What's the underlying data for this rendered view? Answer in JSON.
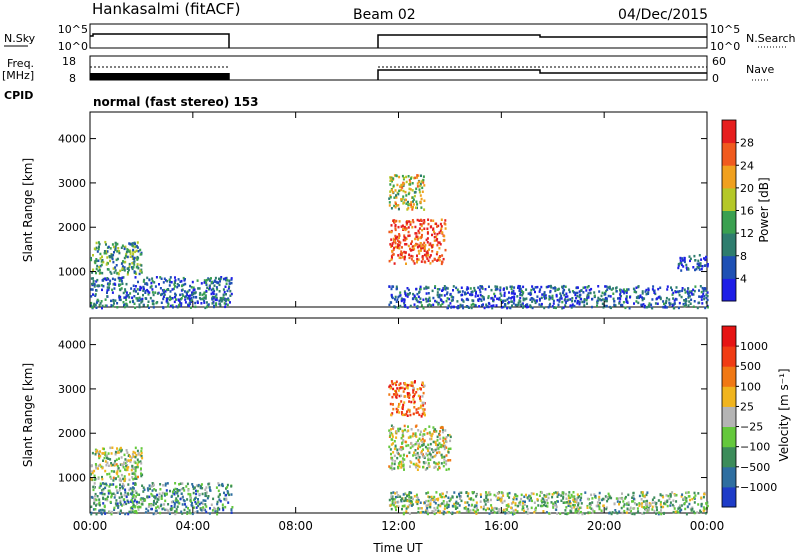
{
  "header": {
    "station": "Hankasalmi (fitACF)",
    "beam": "Beam 02",
    "date": "04/Dec/2015"
  },
  "status_panels": {
    "nsky_label": "N.Sky",
    "nsky_ticks": [
      "10^5",
      "10^0"
    ],
    "nsearch_label": "N.Search",
    "nsearch_ticks": [
      "10^5",
      "10^0"
    ],
    "freq_label": "Freq.",
    "freq_unit": "[MHz]",
    "freq_ticks": [
      "18",
      "8"
    ],
    "nave_label": "Nave",
    "nave_ticks": [
      "60",
      "0"
    ],
    "cpid_label": "CPID",
    "cpid_text": "normal (fast stereo) 153"
  },
  "colors": {
    "power_scale": [
      "#1e1ee6",
      "#1e50b4",
      "#2e7d6e",
      "#3aa050",
      "#b4c828",
      "#f0a01e",
      "#f05a1e",
      "#e61e1e"
    ],
    "velocity_scale": [
      "#1e3cc8",
      "#2e6ea0",
      "#3c8c5a",
      "#64c83c",
      "#b4b4b4",
      "#f0b41e",
      "#f07814",
      "#f03c14",
      "#e61414"
    ]
  },
  "chart_data": [
    {
      "type": "heatmap",
      "panel": "power",
      "ylabel": "Slant Range [km]",
      "yticks": [
        "1000",
        "2000",
        "3000",
        "4000"
      ],
      "ylim": [
        200,
        4600
      ],
      "xlim": [
        0,
        24
      ],
      "colorbar_label": "Power [dB]",
      "colorbar_ticks": [
        "28",
        "24",
        "20",
        "16",
        "12",
        "8",
        "4"
      ],
      "colorbar_range": [
        0,
        32
      ],
      "regions": [
        {
          "t0": 0.0,
          "t1": 5.5,
          "r0": 200,
          "r1": 900,
          "level": 0.25
        },
        {
          "t0": 0.0,
          "t1": 2.0,
          "r0": 950,
          "r1": 1700,
          "level": 0.4
        },
        {
          "t0": 11.6,
          "t1": 13.8,
          "r0": 1200,
          "r1": 2200,
          "level": 0.85
        },
        {
          "t0": 11.6,
          "t1": 13.0,
          "r0": 2400,
          "r1": 3200,
          "level": 0.55
        },
        {
          "t0": 11.6,
          "t1": 24.0,
          "r0": 200,
          "r1": 700,
          "level": 0.2
        },
        {
          "t0": 22.8,
          "t1": 24.0,
          "r0": 1050,
          "r1": 1400,
          "level": 0.15
        }
      ]
    },
    {
      "type": "heatmap",
      "panel": "velocity",
      "ylabel": "Slant Range [km]",
      "yticks": [
        "1000",
        "2000",
        "3000",
        "4000"
      ],
      "ylim": [
        200,
        4600
      ],
      "xlim": [
        0,
        24
      ],
      "colorbar_label": "Velocity [m s⁻¹]",
      "colorbar_ticks": [
        "1000",
        "500",
        "100",
        "25",
        "−25",
        "−100",
        "−500",
        "−1000"
      ],
      "regions": [
        {
          "t0": 0.0,
          "t1": 5.5,
          "r0": 200,
          "r1": 900,
          "level": 0.3
        },
        {
          "t0": 0.0,
          "t1": 2.0,
          "r0": 950,
          "r1": 1700,
          "level": 0.45
        },
        {
          "t0": 11.6,
          "t1": 14.0,
          "r0": 1200,
          "r1": 2200,
          "level": 0.5
        },
        {
          "t0": 11.6,
          "t1": 13.0,
          "r0": 2400,
          "r1": 3200,
          "level": 0.75
        },
        {
          "t0": 11.6,
          "t1": 24.0,
          "r0": 200,
          "r1": 700,
          "level": 0.4
        }
      ]
    }
  ],
  "time_axis": {
    "ticks": [
      "00:00",
      "04:00",
      "08:00",
      "12:00",
      "16:00",
      "20:00",
      "00:00"
    ],
    "label": "Time UT"
  }
}
